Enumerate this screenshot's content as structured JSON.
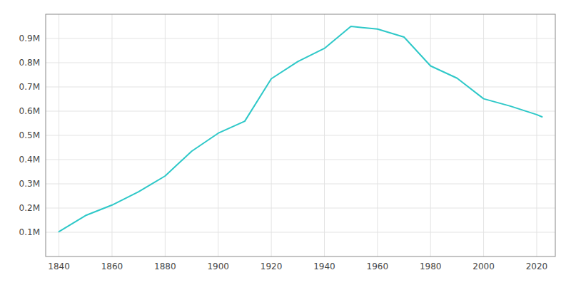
{
  "chart_data": {
    "type": "line",
    "x": [
      1840,
      1850,
      1860,
      1870,
      1880,
      1890,
      1900,
      1910,
      1920,
      1930,
      1940,
      1950,
      1960,
      1970,
      1980,
      1990,
      2000,
      2010,
      2020,
      2022
    ],
    "values": [
      102313,
      169054,
      212418,
      267354,
      332313,
      434439,
      508957,
      558485,
      733826,
      804874,
      859100,
      949708,
      939024,
      905759,
      786775,
      736014,
      651154,
      620961,
      585708,
      576498
    ],
    "color": "#2ec8c8",
    "xlim": [
      1835,
      2027
    ],
    "ylim": [
      0,
      1000000
    ],
    "xticks": [
      1840,
      1860,
      1880,
      1900,
      1920,
      1940,
      1960,
      1980,
      2000,
      2020
    ],
    "yticks": [
      {
        "value": 100000,
        "label": "0.1M"
      },
      {
        "value": 200000,
        "label": "0.2M"
      },
      {
        "value": 300000,
        "label": "0.3M"
      },
      {
        "value": 400000,
        "label": "0.4M"
      },
      {
        "value": 500000,
        "label": "0.5M"
      },
      {
        "value": 600000,
        "label": "0.6M"
      },
      {
        "value": 700000,
        "label": "0.7M"
      },
      {
        "value": 800000,
        "label": "0.8M"
      },
      {
        "value": 900000,
        "label": "0.9M"
      }
    ],
    "grid": true
  }
}
